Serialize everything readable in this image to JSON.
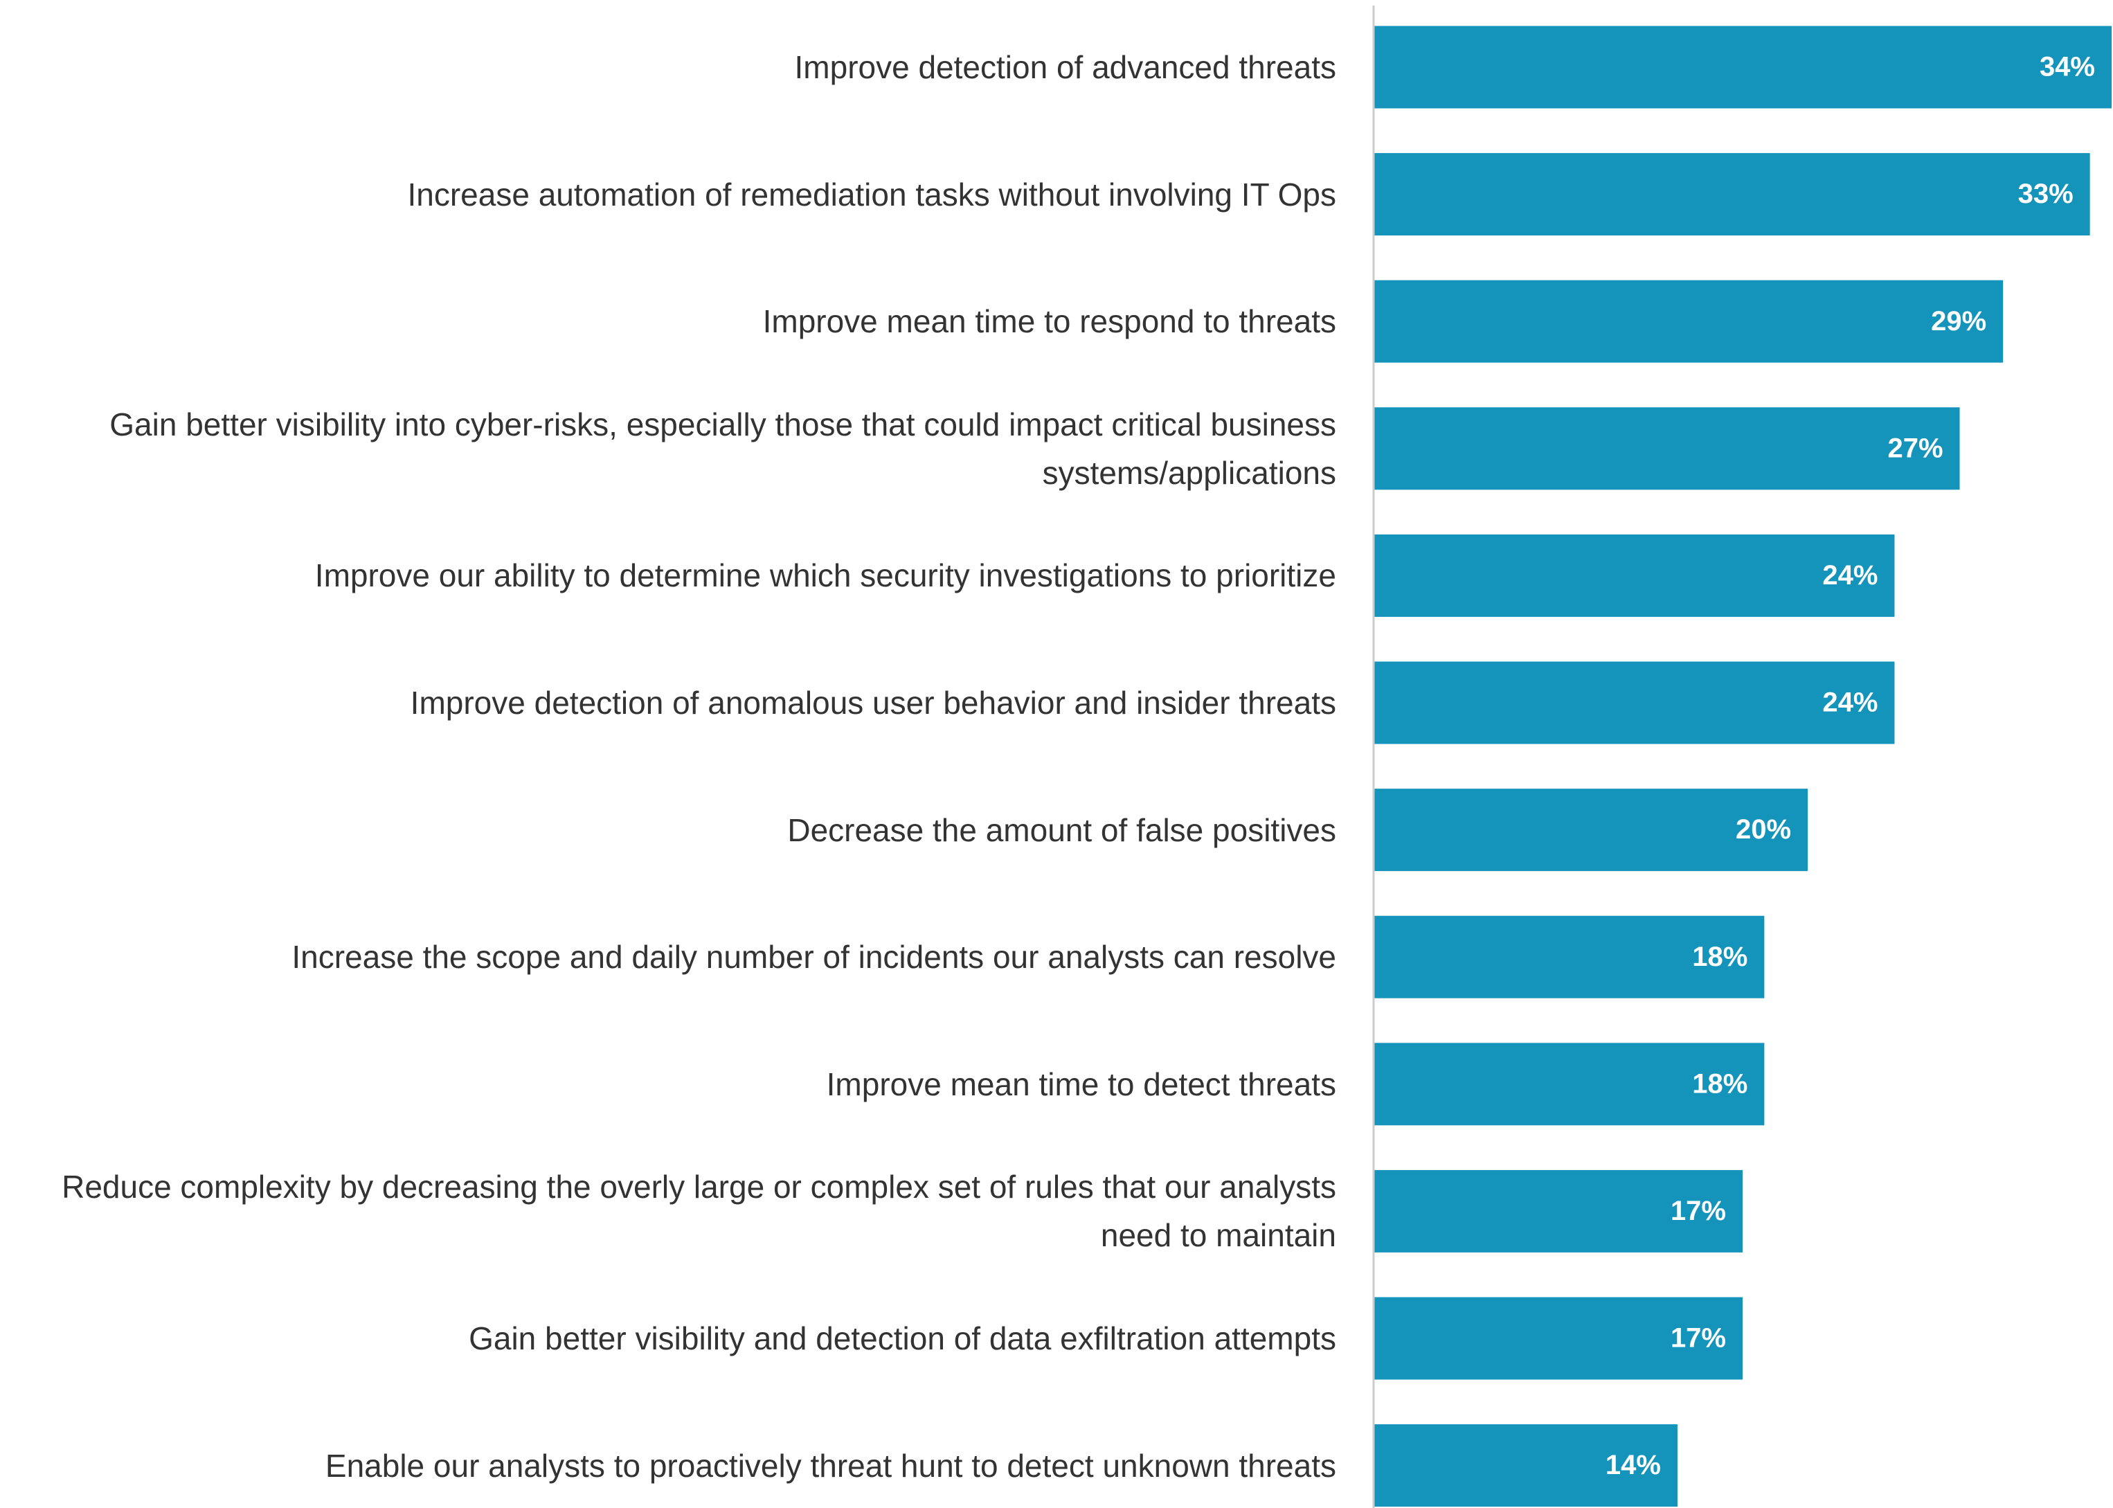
{
  "chart_data": {
    "type": "bar",
    "orientation": "horizontal",
    "categories": [
      "Improve detection of advanced threats",
      "Increase automation of remediation tasks without involving IT Ops",
      "Improve mean time to respond to threats",
      "Gain better visibility into cyber-risks, especially those that could impact critical business systems/applications",
      "Improve our ability to determine which security investigations to prioritize",
      "Improve detection of anomalous user behavior and insider threats",
      "Decrease the amount of false positives",
      "Increase the scope and daily number of incidents our analysts can resolve",
      "Improve mean time to detect threats",
      "Reduce complexity by decreasing the overly large or complex set of rules that our analysts need to maintain",
      "Gain better visibility and detection of data exfiltration attempts",
      "Enable our analysts to proactively threat hunt to detect unknown threats"
    ],
    "values": [
      34,
      33,
      29,
      27,
      24,
      24,
      20,
      18,
      18,
      17,
      17,
      14
    ],
    "value_labels": [
      "34%",
      "33%",
      "29%",
      "27%",
      "24%",
      "24%",
      "20%",
      "18%",
      "18%",
      "17%",
      "17%",
      "14%"
    ],
    "color": "#1494bb",
    "xlim": [
      0,
      34
    ]
  }
}
